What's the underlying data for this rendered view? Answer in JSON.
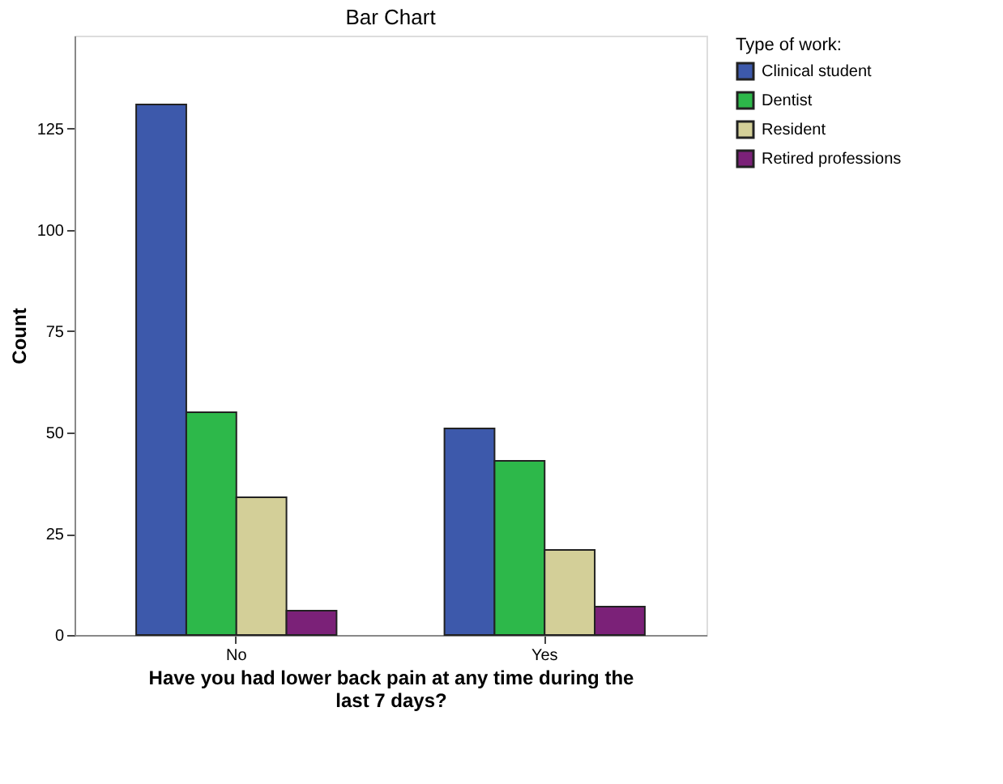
{
  "chart_data": {
    "type": "bar",
    "title": "Bar Chart",
    "xlabel": "Have you had lower back pain at any time during the\nlast 7 days?",
    "ylabel": "Count",
    "legend_title": "Type of work:",
    "categories": [
      "No",
      "Yes"
    ],
    "series": [
      {
        "name": "Clinical student",
        "color": "#3d59ab",
        "values": [
          131,
          51
        ]
      },
      {
        "name": "Dentist",
        "color": "#2db84a",
        "values": [
          55,
          43
        ]
      },
      {
        "name": "Resident",
        "color": "#d3cf98",
        "values": [
          34,
          21
        ]
      },
      {
        "name": "Retired professions",
        "color": "#7b2178",
        "values": [
          6,
          7
        ]
      }
    ],
    "ylim": [
      0,
      148
    ],
    "yticks": [
      0,
      25,
      50,
      75,
      100,
      125
    ],
    "grid": false,
    "legend": "top right"
  }
}
